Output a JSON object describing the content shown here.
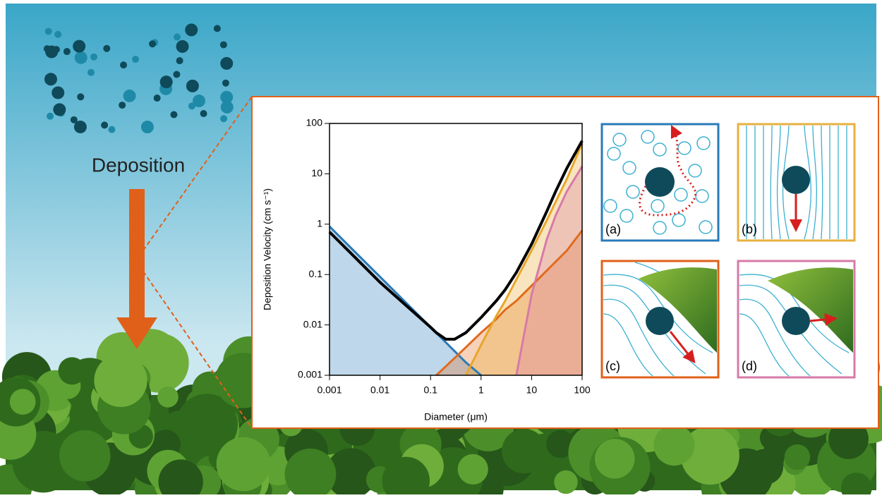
{
  "heading": "Deposition",
  "panels": [
    "(a)",
    "(b)",
    "(c)",
    "(d)"
  ],
  "chart_data": {
    "type": "line",
    "xlabel": "Diameter (μm)",
    "ylabel": "Deposition Velocity (cm s⁻¹)",
    "log_x": true,
    "log_y": true,
    "xlim": [
      0.001,
      100
    ],
    "ylim": [
      0.001,
      100
    ],
    "xticks": [
      0.001,
      0.01,
      0.1,
      1,
      10,
      100
    ],
    "yticks": [
      0.001,
      0.01,
      0.1,
      1,
      10,
      100
    ],
    "x": [
      0.001,
      0.01,
      0.1,
      0.13,
      0.2,
      0.3,
      0.5,
      1,
      2,
      3,
      5,
      10,
      20,
      30,
      50,
      100
    ],
    "series": [
      {
        "color": "#2a7ab8",
        "values": [
          0.9,
          0.09,
          0.009,
          0.0069,
          0.0045,
          0.003,
          0.0018,
          0.001,
          null,
          null,
          null,
          null,
          null,
          null,
          null,
          null
        ]
      },
      {
        "color": "#e06a1e",
        "values": [
          null,
          null,
          null,
          0.001,
          0.0015,
          0.0022,
          0.0036,
          0.007,
          0.013,
          0.02,
          0.03,
          0.06,
          0.12,
          0.18,
          0.3,
          0.75
        ]
      },
      {
        "color": "#e8a628",
        "values": [
          null,
          null,
          null,
          null,
          null,
          null,
          0.001,
          0.004,
          0.015,
          0.03,
          0.08,
          0.3,
          1.2,
          2.8,
          8,
          40
        ]
      },
      {
        "color": "#d77aa8",
        "values": [
          null,
          null,
          null,
          null,
          null,
          null,
          null,
          null,
          null,
          null,
          0.001,
          0.04,
          0.5,
          1.5,
          4.5,
          14
        ]
      },
      {
        "color": "#000000",
        "values": [
          0.7,
          0.07,
          0.009,
          0.007,
          0.0052,
          0.0052,
          0.007,
          0.014,
          0.03,
          0.05,
          0.11,
          0.4,
          1.8,
          4.5,
          13,
          45
        ]
      }
    ]
  }
}
